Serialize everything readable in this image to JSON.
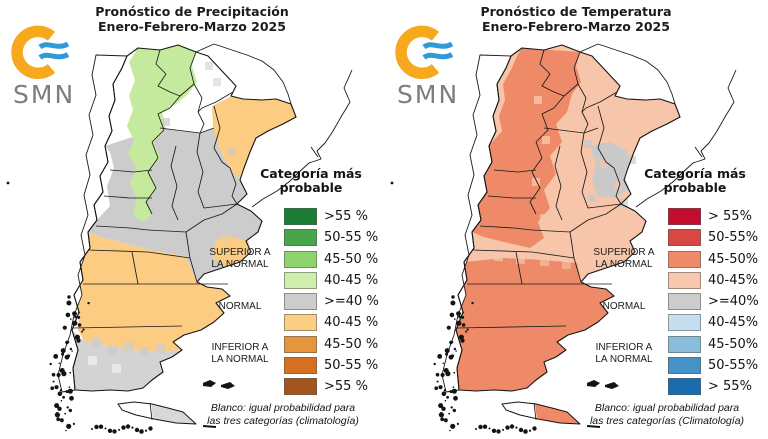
{
  "logo": {
    "text": "SMN",
    "orange": "#F7A91E",
    "blue": "#2E9BD6",
    "text_color": "#7d7d7d"
  },
  "panels": [
    {
      "id": "precipitation",
      "title_line1": "Pronóstico de Precipitación",
      "title_line2": "Enero-Febrero-Marzo 2025",
      "legend": {
        "title_line1": "Categoría más",
        "title_line2": "probable",
        "rows": [
          {
            "label": ">55 %",
            "color": "#1d7c33"
          },
          {
            "label": "50-55 %",
            "color": "#48a549"
          },
          {
            "label": "45-50 %",
            "color": "#8dd36e"
          },
          {
            "label": "40-45 %",
            "color": "#cdeead"
          },
          {
            "label": ">=40 %",
            "color": "#cccccc"
          },
          {
            "label": "40-45 %",
            "color": "#fcce83"
          },
          {
            "label": "45-50 %",
            "color": "#e5953c"
          },
          {
            "label": "50-55 %",
            "color": "#d4701f"
          },
          {
            "label": ">55 %",
            "color": "#a4541e"
          }
        ],
        "side_above_1": "SUPERIOR A",
        "side_above_2": "LA NORMAL",
        "side_normal": "NORMAL",
        "side_below_1": "INFERIOR A",
        "side_below_2": "LA NORMAL",
        "footer_line1": "Blanco: igual probabilidad para",
        "footer_line2": "las tres categorías (climatología)"
      },
      "map_fills": {
        "base": "#ffffff",
        "center": "#cccccc",
        "northwest": "#c5ea9d",
        "northeast": "#fbcc81",
        "patagonia_band": "#fbcc81",
        "southeast_ba": "#fbcc81",
        "south": "#d3d3d3",
        "tierra_del_fuego": "#d8d8d8"
      }
    },
    {
      "id": "temperature",
      "title_line1": "Pronóstico de Temperatura",
      "title_line2": "Enero-Febrero-Marzo 2025",
      "legend": {
        "title_line1": "Categoría más",
        "title_line2": "probable",
        "rows": [
          {
            "label": "> 55%",
            "color": "#c20e2e"
          },
          {
            "label": "50-55%",
            "color": "#d74743"
          },
          {
            "label": "45-50%",
            "color": "#ee8a68"
          },
          {
            "label": "40-45%",
            "color": "#f7c8ad"
          },
          {
            "label": ">=40%",
            "color": "#cccccc"
          },
          {
            "label": "40-45%",
            "color": "#c6dff0"
          },
          {
            "label": "45-50%",
            "color": "#8abdda"
          },
          {
            "label": "50-55%",
            "color": "#4592c6"
          },
          {
            "label": "> 55%",
            "color": "#1b6cae"
          }
        ],
        "side_above_1": "SUPERIOR A",
        "side_above_2": "LA NORMAL",
        "side_normal": "NORMAL",
        "side_below_1": "INFERIOR A",
        "side_below_2": "LA NORMAL",
        "footer_line1": "Blanco: igual probabilidad para",
        "footer_line2": "las tres categorías (Climatología)"
      },
      "map_fills": {
        "base": "#f7c5a9",
        "west": "#ee8a68",
        "south": "#ee8a68",
        "east_gray": "#c9c9c9",
        "tierra_del_fuego": "#ee8a68"
      }
    }
  ]
}
